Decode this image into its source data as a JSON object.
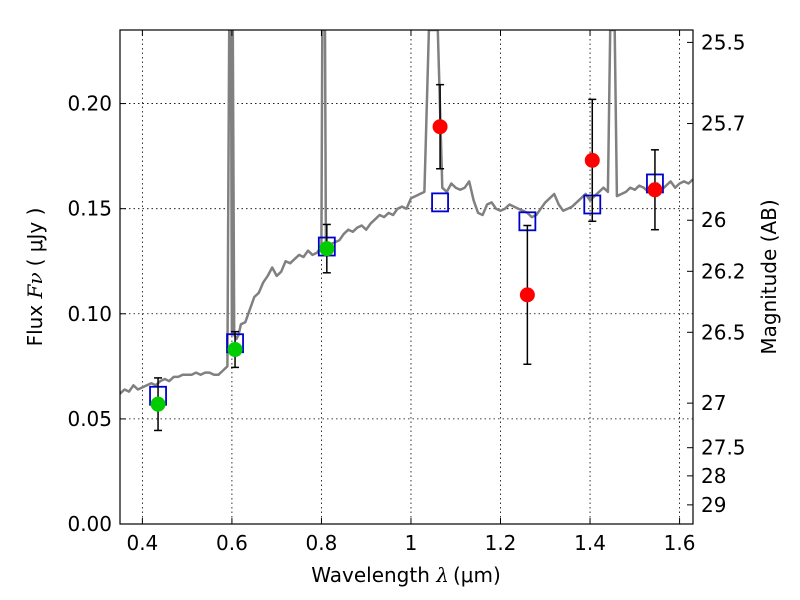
{
  "chart_data": {
    "type": "scatter",
    "title": "",
    "xlabel": "Wavelength  λ (μm)",
    "xlabel_prefix": "Wavelength  ",
    "xlabel_symbol": "λ",
    "xlabel_unit": "(μm)",
    "ylabel": "Flux  Fν  ( μJy )",
    "ylabel_prefix": "Flux  ",
    "ylabel_symbol": "Fν",
    "ylabel_unit": "( μJy )",
    "y2label": "Magnitude (AB)",
    "xlim": [
      0.35,
      1.63
    ],
    "ylim": [
      0.0,
      0.235
    ],
    "x_ticks": [
      0.4,
      0.6,
      0.8,
      1.0,
      1.2,
      1.4,
      1.6
    ],
    "x_tick_labels": [
      "0.4",
      "0.6",
      "0.8",
      "1",
      "1.2",
      "1.4",
      "1.6"
    ],
    "y_ticks": [
      0.0,
      0.05,
      0.1,
      0.15,
      0.2
    ],
    "y_tick_labels": [
      "0.00",
      "0.05",
      "0.10",
      "0.15",
      "0.20"
    ],
    "y2_ticks": [
      {
        "label": "25.5",
        "flux": 0.2291
      },
      {
        "label": "25.7",
        "flux": 0.1905
      },
      {
        "label": "26",
        "flux": 0.1445
      },
      {
        "label": "26.2",
        "flux": 0.1202
      },
      {
        "label": "26.5",
        "flux": 0.0912
      },
      {
        "label": "27",
        "flux": 0.0575
      },
      {
        "label": "27.5",
        "flux": 0.0363
      },
      {
        "label": "28",
        "flux": 0.0229
      },
      {
        "label": "29",
        "flux": 0.0091
      }
    ],
    "grid": true,
    "colors": {
      "spectrum": "#808080",
      "model_box": "#0000cc",
      "red_points": "#ff0000",
      "green_points": "#00cc00",
      "errorbar": "#000000"
    },
    "series": [
      {
        "kind": "spectrum",
        "x": [
          0.35,
          0.36,
          0.37,
          0.38,
          0.39,
          0.4,
          0.41,
          0.42,
          0.43,
          0.44,
          0.45,
          0.46,
          0.47,
          0.48,
          0.49,
          0.5,
          0.51,
          0.52,
          0.53,
          0.54,
          0.55,
          0.56,
          0.57,
          0.58,
          0.59,
          0.594,
          0.596,
          0.598,
          0.6,
          0.602,
          0.605,
          0.61,
          0.615,
          0.62,
          0.63,
          0.64,
          0.65,
          0.66,
          0.67,
          0.68,
          0.69,
          0.7,
          0.71,
          0.72,
          0.73,
          0.74,
          0.75,
          0.76,
          0.77,
          0.78,
          0.79,
          0.8,
          0.802,
          0.804,
          0.806,
          0.808,
          0.81,
          0.82,
          0.83,
          0.84,
          0.85,
          0.86,
          0.87,
          0.88,
          0.89,
          0.9,
          0.91,
          0.92,
          0.93,
          0.94,
          0.95,
          0.96,
          0.97,
          0.98,
          0.99,
          1.0,
          1.01,
          1.02,
          1.03,
          1.04,
          1.045,
          1.05,
          1.055,
          1.06,
          1.07,
          1.08,
          1.09,
          1.1,
          1.11,
          1.12,
          1.13,
          1.14,
          1.15,
          1.16,
          1.17,
          1.18,
          1.19,
          1.2,
          1.21,
          1.22,
          1.23,
          1.24,
          1.25,
          1.26,
          1.27,
          1.28,
          1.29,
          1.3,
          1.31,
          1.32,
          1.33,
          1.34,
          1.35,
          1.36,
          1.37,
          1.38,
          1.39,
          1.4,
          1.41,
          1.42,
          1.43,
          1.44,
          1.445,
          1.45,
          1.455,
          1.46,
          1.47,
          1.48,
          1.49,
          1.5,
          1.51,
          1.52,
          1.53,
          1.54,
          1.55,
          1.56,
          1.57,
          1.58,
          1.59,
          1.6,
          1.61,
          1.62,
          1.63
        ],
        "y": [
          0.062,
          0.064,
          0.063,
          0.066,
          0.064,
          0.065,
          0.066,
          0.067,
          0.066,
          0.068,
          0.069,
          0.068,
          0.07,
          0.07,
          0.071,
          0.071,
          0.071,
          0.072,
          0.071,
          0.072,
          0.072,
          0.071,
          0.071,
          0.073,
          0.075,
          0.235,
          0.235,
          0.235,
          0.09,
          0.235,
          0.09,
          0.088,
          0.09,
          0.095,
          0.096,
          0.102,
          0.108,
          0.11,
          0.115,
          0.118,
          0.122,
          0.118,
          0.12,
          0.125,
          0.124,
          0.126,
          0.128,
          0.127,
          0.13,
          0.128,
          0.129,
          0.132,
          0.235,
          0.235,
          0.235,
          0.235,
          0.133,
          0.133,
          0.134,
          0.135,
          0.138,
          0.14,
          0.139,
          0.141,
          0.142,
          0.14,
          0.143,
          0.145,
          0.147,
          0.146,
          0.148,
          0.147,
          0.15,
          0.151,
          0.15,
          0.155,
          0.156,
          0.157,
          0.158,
          0.235,
          0.235,
          0.235,
          0.235,
          0.235,
          0.16,
          0.158,
          0.162,
          0.16,
          0.159,
          0.16,
          0.163,
          0.154,
          0.148,
          0.147,
          0.152,
          0.153,
          0.15,
          0.149,
          0.15,
          0.152,
          0.151,
          0.15,
          0.149,
          0.148,
          0.146,
          0.147,
          0.15,
          0.153,
          0.155,
          0.157,
          0.152,
          0.149,
          0.15,
          0.151,
          0.153,
          0.155,
          0.157,
          0.154,
          0.156,
          0.158,
          0.16,
          0.158,
          0.235,
          0.235,
          0.235,
          0.156,
          0.157,
          0.158,
          0.16,
          0.159,
          0.161,
          0.16,
          0.158,
          0.16,
          0.162,
          0.159,
          0.161,
          0.163,
          0.16,
          0.162,
          0.163,
          0.162,
          0.164
        ]
      },
      {
        "kind": "model",
        "name": "model",
        "x": [
          0.435,
          0.607,
          0.812,
          1.065,
          1.26,
          1.405,
          1.545
        ],
        "y": [
          0.061,
          0.086,
          0.132,
          0.153,
          0.144,
          0.152,
          0.162
        ]
      },
      {
        "kind": "observed-red",
        "x": [
          1.065,
          1.26,
          1.405,
          1.545
        ],
        "y": [
          0.189,
          0.109,
          0.173,
          0.159
        ],
        "err": [
          0.02,
          0.033,
          0.029,
          0.019
        ]
      },
      {
        "kind": "observed-green",
        "x": [
          0.435,
          0.607,
          0.812
        ],
        "y": [
          0.057,
          0.083,
          0.131
        ],
        "err": [
          0.0125,
          0.0085,
          0.0115
        ]
      }
    ]
  }
}
